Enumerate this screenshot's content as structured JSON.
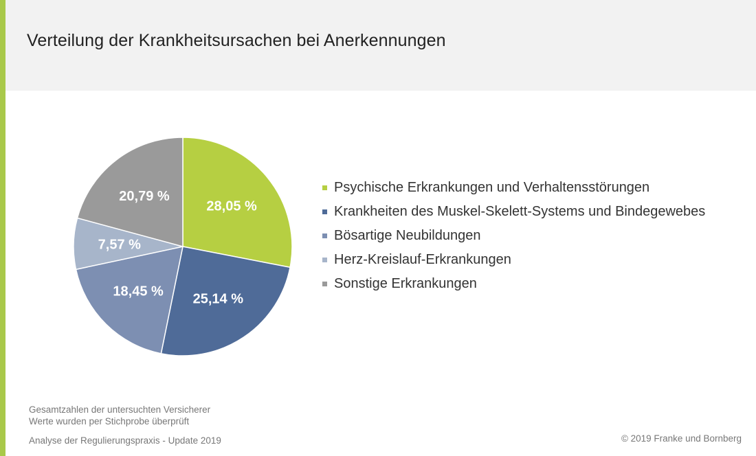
{
  "header": {
    "title": "Verteilung der Krankheitsursachen bei Anerkennungen"
  },
  "colors": {
    "accent": "#a9c94a",
    "header_bg": "#f2f2f2"
  },
  "chart_data": {
    "type": "pie",
    "start_angle_deg": 0,
    "direction": "clockwise",
    "legend_position": "right",
    "categories": [
      "Psychische Erkrankungen und Verhaltensstörungen",
      "Krankheiten des Muskel-Skelett-Systems und Bindegewebes",
      "Bösartige Neubildungen",
      "Herz-Kreislauf-Erkrankungen",
      "Sonstige Erkrankungen"
    ],
    "values": [
      28.05,
      25.14,
      18.45,
      7.57,
      20.79
    ],
    "labels": [
      "28,05 %",
      "25,14 %",
      "18,45 %",
      "7,57 %",
      "20,79 %"
    ],
    "colors": [
      "#b6cf42",
      "#4f6b98",
      "#7d8fb2",
      "#a7b5ca",
      "#9a9a9a"
    ]
  },
  "footer": {
    "note1": "Gesamtzahlen der untersuchten Versicherer",
    "note2": "Werte wurden per Stichprobe überprüft",
    "source": "Analyse der Regulierungspraxis - Update 2019",
    "copyright": "© 2019 Franke und Bornberg"
  }
}
